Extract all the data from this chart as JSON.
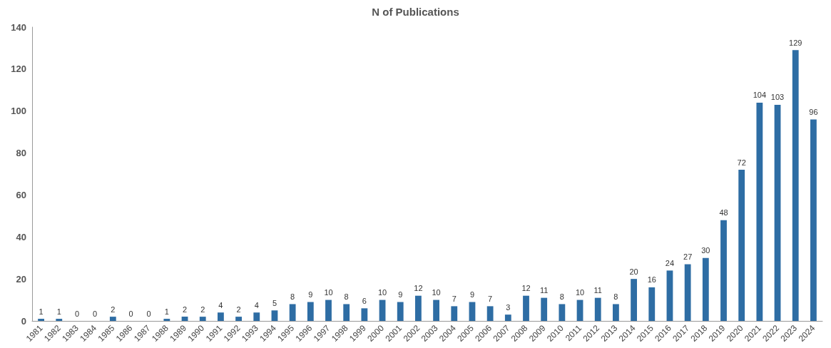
{
  "chart_data": {
    "type": "bar",
    "title": "N of Publications",
    "categories": [
      "1981",
      "1982",
      "1983",
      "1984",
      "1985",
      "1986",
      "1987",
      "1988",
      "1989",
      "1990",
      "1991",
      "1992",
      "1993",
      "1994",
      "1995",
      "1996",
      "1997",
      "1998",
      "1999",
      "2000",
      "2001",
      "2002",
      "2003",
      "2004",
      "2005",
      "2006",
      "2007",
      "2008",
      "2009",
      "2010",
      "2011",
      "2012",
      "2013",
      "2014",
      "2015",
      "2016",
      "2017",
      "2018",
      "2019",
      "2020",
      "2021",
      "2022",
      "2023",
      "2024"
    ],
    "values": [
      1,
      1,
      0,
      0,
      2,
      0,
      0,
      1,
      2,
      2,
      4,
      2,
      4,
      5,
      8,
      9,
      10,
      8,
      6,
      10,
      9,
      12,
      10,
      7,
      9,
      7,
      3,
      12,
      11,
      8,
      10,
      11,
      8,
      20,
      16,
      24,
      27,
      30,
      48,
      72,
      104,
      103,
      129,
      96
    ],
    "color": "#2e6da4",
    "ylim": [
      0,
      140
    ],
    "yticks": [
      0,
      20,
      40,
      60,
      80,
      100,
      120,
      140
    ],
    "grid": false,
    "data_labels": true
  }
}
